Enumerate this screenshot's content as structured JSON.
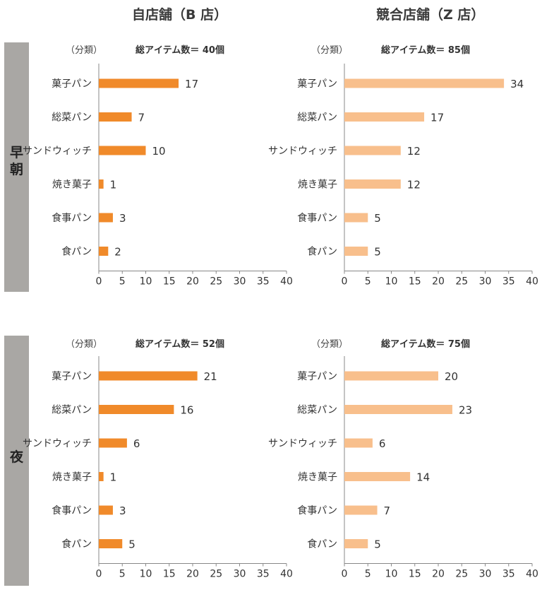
{
  "columns": {
    "own": "自店舗（B 店）",
    "competitor": "競合店舗（Z 店）"
  },
  "rows": {
    "morning": "早朝",
    "night": "夜"
  },
  "colors": {
    "own": "#f08a2a",
    "competitor": "#f8bf8c",
    "sidebar": "#a9a7a4"
  },
  "chart_data": [
    {
      "type": "bar",
      "orientation": "horizontal",
      "header_left": "（分類）",
      "header_right": "総アイテム数＝ 40個",
      "categories": [
        "菓子パン",
        "総菜パン",
        "サンドウィッチ",
        "焼き菓子",
        "食事パン",
        "食パン"
      ],
      "values": [
        17,
        7,
        10,
        1,
        3,
        2
      ],
      "value_labels": [
        "17",
        "7",
        "10",
        "1",
        "3",
        "2"
      ],
      "xlim": [
        0,
        40
      ],
      "xticks": [
        "0",
        "5",
        "10",
        "15",
        "20",
        "25",
        "30",
        "35",
        "40"
      ]
    },
    {
      "type": "bar",
      "orientation": "horizontal",
      "header_left": "（分類）",
      "header_right": "総アイテム数＝ 85個",
      "categories": [
        "菓子パン",
        "総菜パン",
        "サンドウィッチ",
        "焼き菓子",
        "食事パン",
        "食パン"
      ],
      "values": [
        34,
        17,
        12,
        12,
        5,
        5
      ],
      "value_labels": [
        "34",
        "17",
        "12",
        "12",
        "5",
        "5"
      ],
      "xlim": [
        0,
        40
      ],
      "xticks": [
        "0",
        "5",
        "10",
        "15",
        "20",
        "25",
        "30",
        "35",
        "40"
      ]
    },
    {
      "type": "bar",
      "orientation": "horizontal",
      "header_left": "（分類）",
      "header_right": "総アイテム数＝ 52個",
      "categories": [
        "菓子パン",
        "総菜パン",
        "サンドウィッチ",
        "焼き菓子",
        "食事パン",
        "食パン"
      ],
      "values": [
        21,
        16,
        6,
        1,
        3,
        5
      ],
      "value_labels": [
        "21",
        "16",
        "6",
        "1",
        "3",
        "5"
      ],
      "xlim": [
        0,
        40
      ],
      "xticks": [
        "0",
        "5",
        "10",
        "15",
        "20",
        "25",
        "30",
        "35",
        "40"
      ]
    },
    {
      "type": "bar",
      "orientation": "horizontal",
      "header_left": "（分類）",
      "header_right": "総アイテム数＝ 75個",
      "categories": [
        "菓子パン",
        "総菜パン",
        "サンドウィッチ",
        "焼き菓子",
        "食事パン",
        "食パン"
      ],
      "values": [
        20,
        23,
        6,
        14,
        7,
        5
      ],
      "value_labels": [
        "20",
        "23",
        "6",
        "14",
        "7",
        "5"
      ],
      "xlim": [
        0,
        40
      ],
      "xticks": [
        "0",
        "5",
        "10",
        "15",
        "20",
        "25",
        "30",
        "35",
        "40"
      ]
    }
  ]
}
